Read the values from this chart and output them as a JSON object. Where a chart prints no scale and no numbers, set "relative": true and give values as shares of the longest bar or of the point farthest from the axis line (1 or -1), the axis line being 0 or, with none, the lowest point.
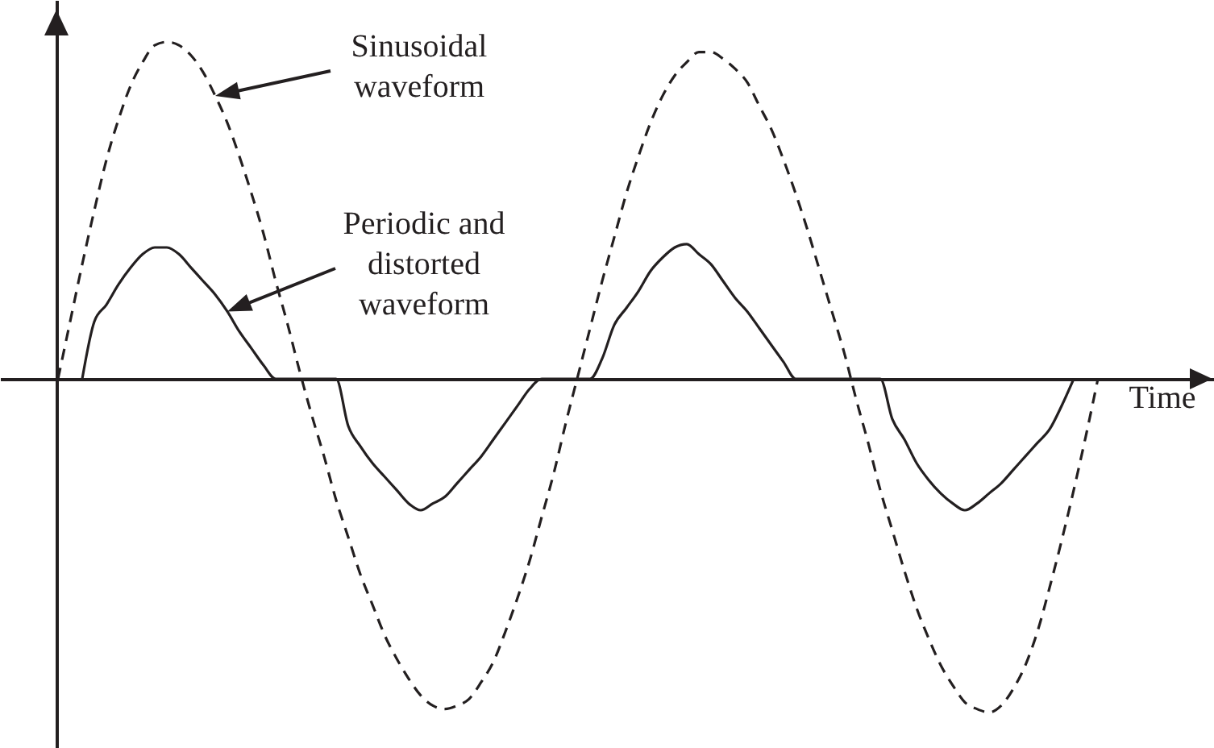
{
  "chart_data": {
    "type": "line",
    "relative": true,
    "xlabel": "Time",
    "categories": [
      null,
      null,
      null,
      null,
      null,
      null,
      null,
      null,
      null,
      null,
      null,
      null,
      null,
      null,
      null,
      null,
      null,
      null,
      null,
      null,
      null,
      null,
      null,
      null,
      null,
      null,
      null,
      null,
      null,
      null,
      null,
      null,
      null,
      null,
      null,
      null,
      null,
      null,
      null,
      null,
      null,
      null,
      null,
      null,
      null,
      null,
      null,
      null,
      null,
      null,
      null,
      null,
      null,
      null,
      null,
      null,
      null,
      null,
      null,
      null,
      null,
      null,
      null,
      null,
      null,
      null,
      null,
      null,
      null,
      null,
      null,
      null,
      null,
      null,
      null,
      null,
      null,
      null,
      null,
      null,
      null,
      null,
      null,
      null,
      null,
      null,
      null
    ],
    "series": [
      {
        "name": "Sinusoidal waveform",
        "color": "#231f20",
        "line_style": "dashed",
        "values": [
          0,
          0.17,
          0.34,
          0.5,
          0.65,
          0.77,
          0.87,
          0.94,
          0.99,
          1,
          0.99,
          0.96,
          0.91,
          0.84,
          0.76,
          0.66,
          0.55,
          0.43,
          0.29,
          0.16,
          0.02,
          -0.11,
          -0.23,
          -0.36,
          -0.47,
          -0.58,
          -0.67,
          -0.76,
          -0.83,
          -0.89,
          -0.94,
          -0.97,
          -0.98,
          -0.97,
          -0.95,
          -0.9,
          -0.84,
          -0.75,
          -0.65,
          -0.54,
          -0.41,
          -0.28,
          -0.13,
          0.01,
          0.15,
          0.29,
          0.42,
          0.55,
          0.66,
          0.76,
          0.84,
          0.9,
          0.94,
          0.97,
          0.97,
          0.95,
          0.92,
          0.88,
          0.81,
          0.74,
          0.65,
          0.55,
          0.44,
          0.32,
          0.2,
          0.08,
          -0.06,
          -0.19,
          -0.33,
          -0.45,
          -0.57,
          -0.68,
          -0.77,
          -0.85,
          -0.91,
          -0.96,
          -0.98,
          -0.99,
          -0.97,
          -0.92,
          -0.85,
          -0.75,
          -0.62,
          -0.48,
          -0.33,
          -0.17,
          0
        ]
      },
      {
        "name": "Periodic and distorted waveform",
        "color": "#231f20",
        "line_style": "solid",
        "values": [
          null,
          null,
          0,
          0.17,
          0.22,
          0.28,
          0.33,
          0.37,
          0.39,
          0.39,
          0.37,
          0.33,
          0.29,
          0.25,
          0.2,
          0.14,
          0.09,
          0.04,
          0,
          0,
          0,
          0,
          0,
          0,
          -0.14,
          -0.2,
          -0.25,
          -0.29,
          -0.33,
          -0.37,
          -0.39,
          -0.37,
          -0.35,
          -0.31,
          -0.27,
          -0.23,
          -0.18,
          -0.13,
          -0.08,
          -0.03,
          0,
          0,
          0,
          0,
          0,
          0.06,
          0.16,
          0.21,
          0.26,
          0.32,
          0.36,
          0.39,
          0.4,
          0.37,
          0.34,
          0.29,
          0.24,
          0.2,
          0.15,
          0.1,
          0.05,
          0,
          0,
          0,
          0,
          0,
          0,
          0,
          0,
          -0.12,
          -0.18,
          -0.25,
          -0.3,
          -0.34,
          -0.37,
          -0.39,
          -0.37,
          -0.34,
          -0.31,
          -0.27,
          -0.23,
          -0.19,
          -0.15,
          -0.08,
          0,
          null,
          null
        ]
      }
    ]
  }
}
